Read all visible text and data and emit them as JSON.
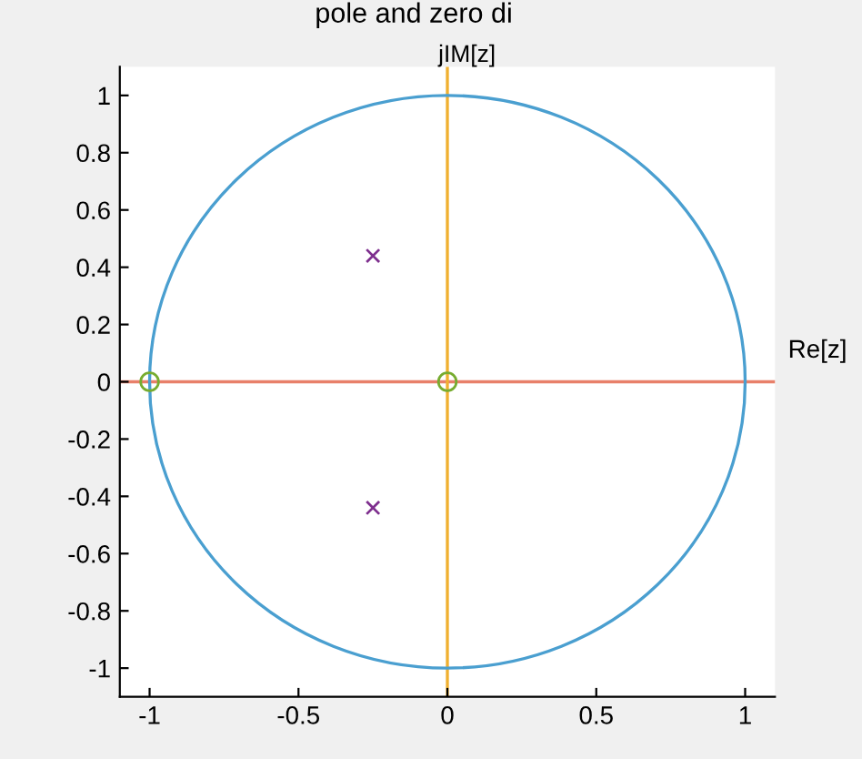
{
  "chart_data": {
    "type": "scatter",
    "title": "pole and zero di",
    "xlim": [
      -1.1,
      1.1
    ],
    "ylim": [
      -1.1,
      1.1
    ],
    "xticks": [
      -1,
      -0.5,
      0,
      0.5,
      1
    ],
    "yticks": [
      -1,
      -0.8,
      -0.6,
      -0.4,
      -0.2,
      0,
      0.2,
      0.4,
      0.6,
      0.8,
      1
    ],
    "grid": false,
    "ref_lines": [
      {
        "axis": "y",
        "value": 0,
        "label": "Re[z]",
        "color": "#e8806a"
      },
      {
        "axis": "x",
        "value": 0,
        "label": "jIM[z]",
        "color": "#f0b030"
      }
    ],
    "series": [
      {
        "color": "#7e2f8e",
        "marker": "cross",
        "x": [
          -0.25,
          -0.25
        ],
        "values": [
          0.44,
          -0.44
        ]
      },
      {
        "color": "#77ac30",
        "marker": "circle",
        "x": [
          -1,
          0
        ],
        "values": [
          0,
          0
        ]
      }
    ]
  }
}
